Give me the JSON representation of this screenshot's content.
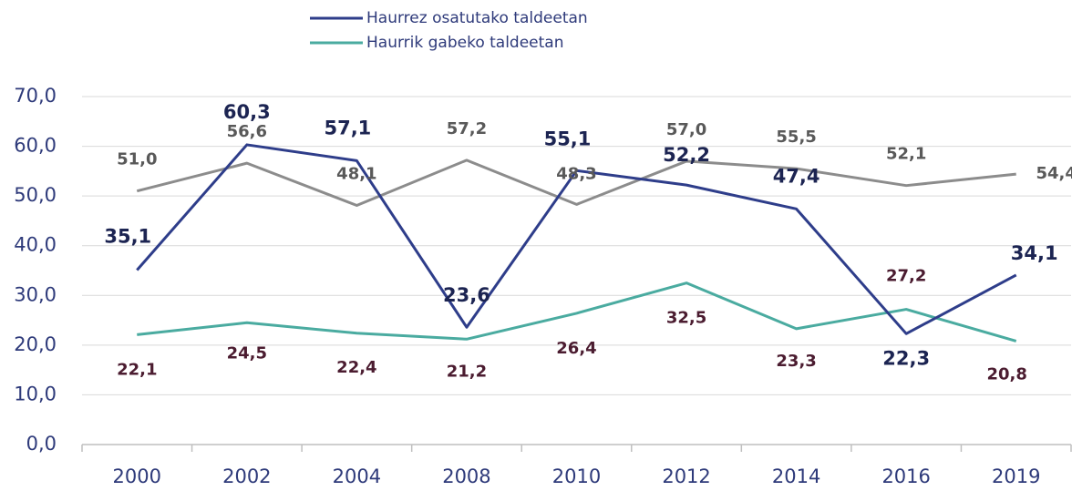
{
  "chart_data": {
    "type": "line",
    "categories": [
      "2000",
      "2002",
      "2004",
      "2008",
      "2010",
      "2012",
      "2014",
      "2016",
      "2019"
    ],
    "series": [
      {
        "name": "Haurrez osatutako taldeetan",
        "color": "#2e3d8a",
        "values": [
          35.1,
          60.3,
          57.1,
          23.6,
          55.1,
          52.2,
          47.4,
          22.3,
          34.1
        ],
        "value_labels": [
          "35,1",
          "60,3",
          "57,1",
          "23,6",
          "55,1",
          "52,2",
          "47,4",
          "22,3",
          "34,1"
        ]
      },
      {
        "color": "#8c8c8c",
        "values": [
          51.0,
          56.6,
          48.1,
          57.2,
          48.3,
          57.0,
          55.5,
          52.1,
          54.4
        ],
        "value_labels": [
          "51,0",
          "56,6",
          "48,1",
          "57,2",
          "48,3",
          "57,0",
          "55,5",
          "52,1",
          "54,4"
        ]
      },
      {
        "name": "Haurrik gabeko taldeetan",
        "color": "#4aaba0",
        "values": [
          22.1,
          24.5,
          22.4,
          21.2,
          26.4,
          32.5,
          23.3,
          27.2,
          20.8
        ],
        "value_labels": [
          "22,1",
          "24,5",
          "22,4",
          "21,2",
          "26,4",
          "32,5",
          "23,3",
          "27,2",
          "20,8"
        ]
      }
    ],
    "ylim": [
      0,
      70
    ],
    "yticks": [
      {
        "value": 0,
        "label": "0,0"
      },
      {
        "value": 10,
        "label": "10,0"
      },
      {
        "value": 20,
        "label": "20,0"
      },
      {
        "value": 30,
        "label": "30,0"
      },
      {
        "value": 40,
        "label": "40,0"
      },
      {
        "value": 50,
        "label": "50,0"
      },
      {
        "value": 60,
        "label": "60,0"
      },
      {
        "value": 70,
        "label": "70,0"
      }
    ],
    "grid": true
  }
}
